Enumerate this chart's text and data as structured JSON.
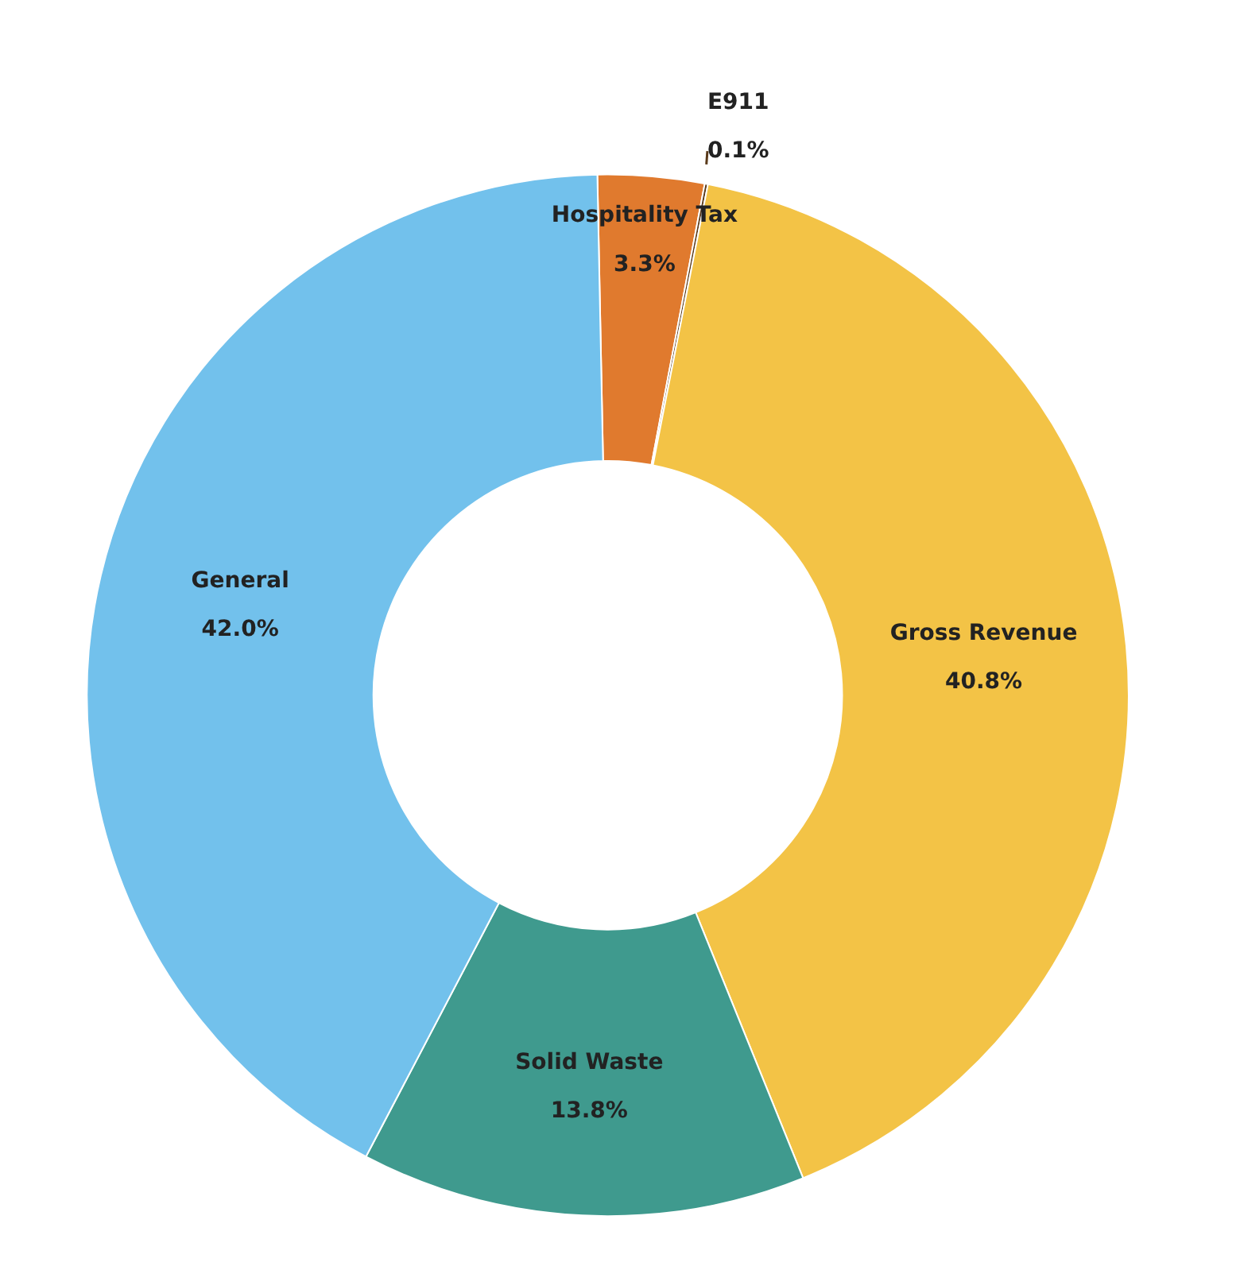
{
  "chart_data": {
    "type": "donut",
    "categories": [
      "Hospitality Tax",
      "E911",
      "Gross Revenue",
      "Solid Waste",
      "General"
    ],
    "values": [
      3.3,
      0.1,
      40.8,
      13.8,
      42.0
    ],
    "colors": [
      "#e07a2e",
      "#5a3a1a",
      "#f3c346",
      "#3f9a8e",
      "#72c1ec"
    ],
    "value_labels": [
      "3.3%",
      "0.1%",
      "40.8%",
      "13.8%",
      "42.0%"
    ]
  }
}
